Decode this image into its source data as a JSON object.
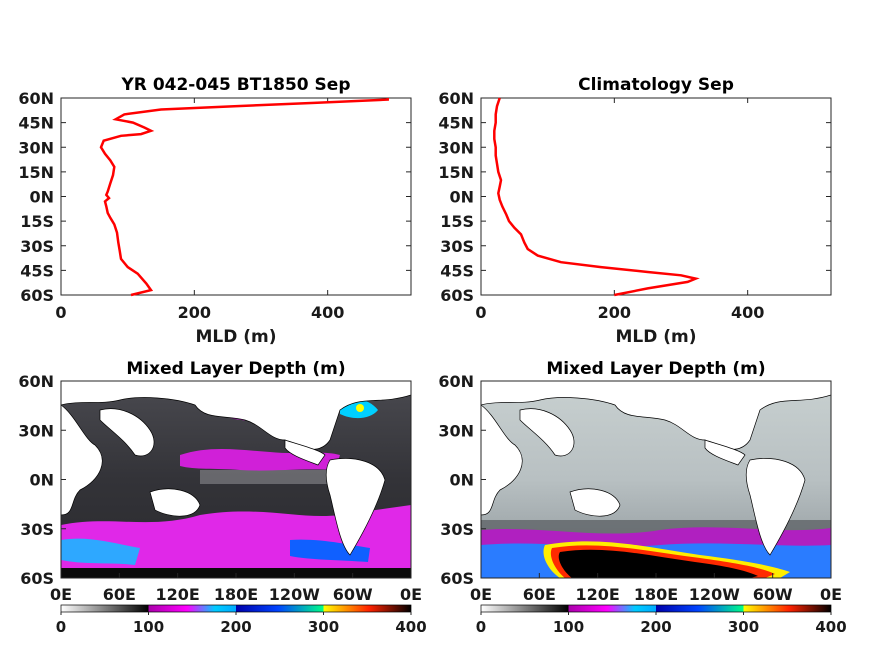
{
  "chart_data": [
    {
      "type": "line",
      "title": "YR 042-045 BT1850 Sep",
      "xlabel": "MLD (m)",
      "ylabel": "",
      "xlim": [
        0,
        525
      ],
      "ylim": [
        -60,
        60
      ],
      "x_ticks": [
        "0",
        "200",
        "400"
      ],
      "y_ticks": [
        "60N",
        "45N",
        "30N",
        "15N",
        "0N",
        "15S",
        "30S",
        "45S",
        "60S"
      ],
      "series_color": "#ff0000",
      "points": [
        [
          105,
          -60
        ],
        [
          135,
          -57
        ],
        [
          128,
          -53
        ],
        [
          115,
          -47
        ],
        [
          100,
          -43
        ],
        [
          90,
          -38
        ],
        [
          88,
          -33
        ],
        [
          86,
          -28
        ],
        [
          84,
          -22
        ],
        [
          80,
          -17
        ],
        [
          74,
          -13
        ],
        [
          70,
          -10
        ],
        [
          68,
          -6
        ],
        [
          66,
          -3
        ],
        [
          72,
          -1
        ],
        [
          68,
          1
        ],
        [
          70,
          3
        ],
        [
          74,
          8
        ],
        [
          78,
          13
        ],
        [
          80,
          18
        ],
        [
          74,
          22
        ],
        [
          66,
          26
        ],
        [
          60,
          30
        ],
        [
          64,
          34
        ],
        [
          90,
          37
        ],
        [
          120,
          38
        ],
        [
          135,
          40
        ],
        [
          125,
          42
        ],
        [
          108,
          45
        ],
        [
          82,
          47
        ],
        [
          95,
          50
        ],
        [
          150,
          53
        ],
        [
          260,
          55
        ],
        [
          380,
          57
        ],
        [
          490,
          59
        ],
        [
          490,
          60
        ]
      ]
    },
    {
      "type": "line",
      "title": "Climatology Sep",
      "xlabel": "MLD (m)",
      "ylabel": "",
      "xlim": [
        0,
        525
      ],
      "ylim": [
        -60,
        60
      ],
      "x_ticks": [
        "0",
        "200",
        "400"
      ],
      "y_ticks": [
        "60N",
        "45N",
        "30N",
        "15N",
        "0N",
        "15S",
        "30S",
        "45S",
        "60S"
      ],
      "series_color": "#ff0000",
      "points": [
        [
          200,
          -60
        ],
        [
          250,
          -56
        ],
        [
          310,
          -52
        ],
        [
          322,
          -50
        ],
        [
          300,
          -48
        ],
        [
          250,
          -46
        ],
        [
          180,
          -43
        ],
        [
          120,
          -40
        ],
        [
          85,
          -36
        ],
        [
          70,
          -32
        ],
        [
          65,
          -28
        ],
        [
          60,
          -23
        ],
        [
          50,
          -19
        ],
        [
          42,
          -15
        ],
        [
          38,
          -11
        ],
        [
          32,
          -6
        ],
        [
          28,
          -2
        ],
        [
          26,
          2
        ],
        [
          28,
          6
        ],
        [
          30,
          10
        ],
        [
          26,
          15
        ],
        [
          24,
          20
        ],
        [
          22,
          25
        ],
        [
          22,
          30
        ],
        [
          20,
          35
        ],
        [
          20,
          40
        ],
        [
          22,
          45
        ],
        [
          22,
          50
        ],
        [
          24,
          55
        ],
        [
          28,
          60
        ]
      ]
    },
    {
      "type": "heatmap",
      "title": "Mixed Layer Depth (m)",
      "x_ticks": [
        "0E",
        "60E",
        "120E",
        "180E",
        "120W",
        "60W",
        "0E"
      ],
      "y_ticks": [
        "60N",
        "30N",
        "0N",
        "30S",
        "60S"
      ],
      "colorbar_ticks": [
        "0",
        "100",
        "200",
        "300",
        "400"
      ],
      "colorbar_range": [
        0,
        400
      ],
      "description_values": "map field; deep values (100-200) concentrated in Southern Ocean band and subpolar North Atlantic"
    },
    {
      "type": "heatmap",
      "title": "Mixed Layer Depth (m)",
      "x_ticks": [
        "0E",
        "60E",
        "120E",
        "180E",
        "120W",
        "60W",
        "0E"
      ],
      "y_ticks": [
        "60N",
        "30N",
        "0N",
        "30S",
        "60S"
      ],
      "colorbar_ticks": [
        "0",
        "100",
        "200",
        "300",
        "400"
      ],
      "colorbar_range": [
        0,
        400
      ],
      "description_values": "map field; very deep values (300-400) in Southern Ocean band near 50S-60S"
    }
  ],
  "colors": {
    "line": "#ff0000",
    "land": "#ffffff",
    "colormap": [
      "#ffffff",
      "#000000",
      "#ff00ff",
      "#00bfff",
      "#0000ff",
      "#00ff7f",
      "#ffff00",
      "#ff0000",
      "#000000"
    ]
  }
}
